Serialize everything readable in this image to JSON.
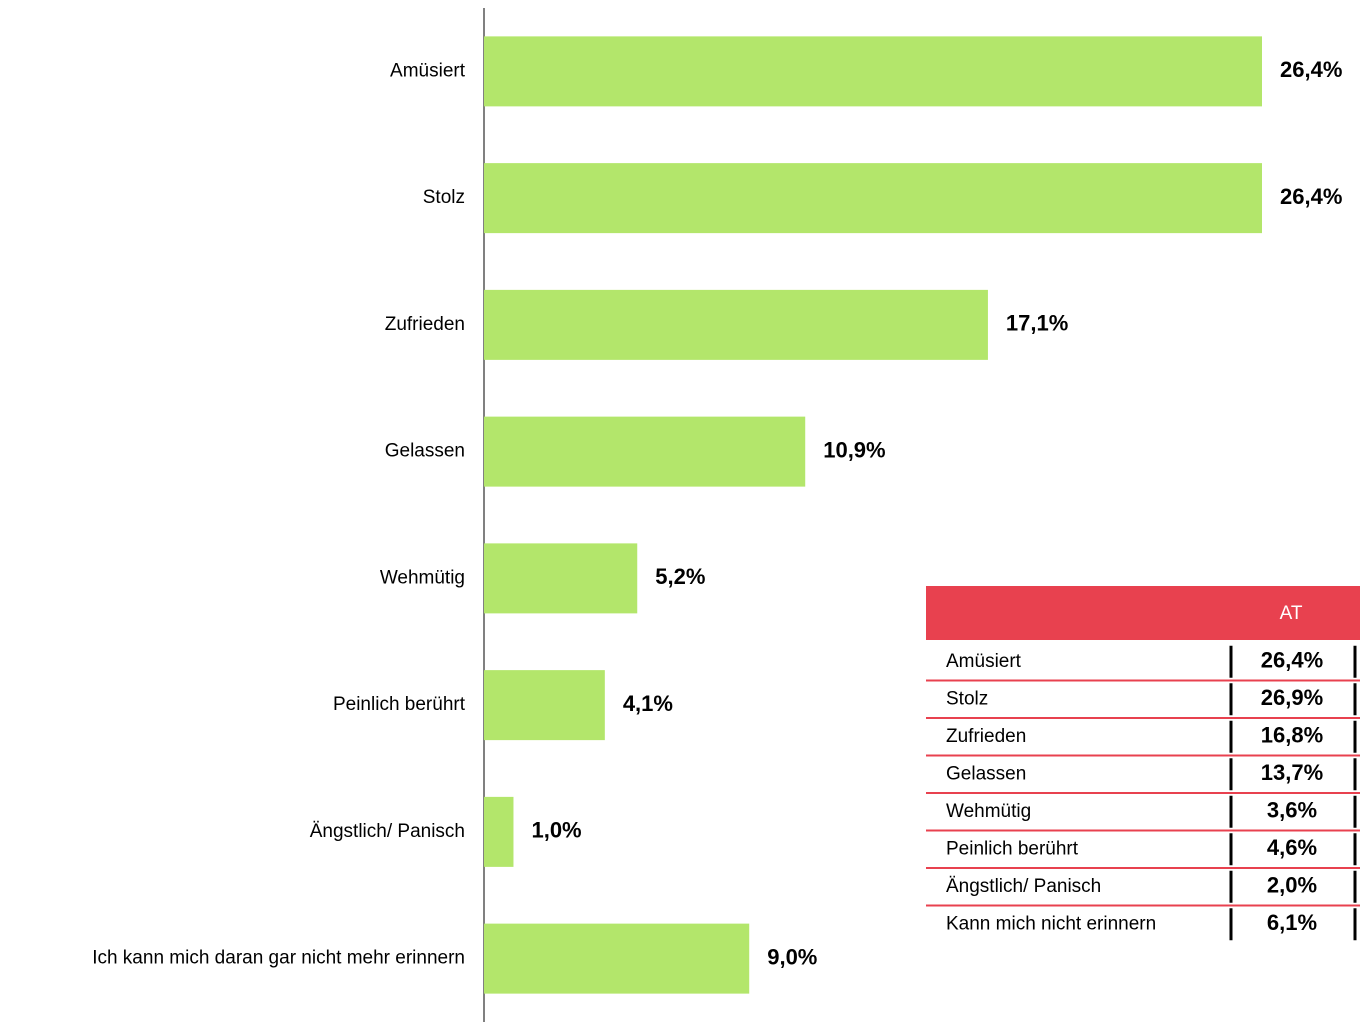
{
  "chart_data": {
    "type": "hbar",
    "categories": [
      "Amüsiert",
      "Stolz",
      "Zufrieden",
      "Gelassen",
      "Wehmütig",
      "Peinlich berührt",
      "Ängstlich/ Panisch",
      "Ich kann mich daran gar nicht mehr erinnern"
    ],
    "values": [
      26.4,
      26.4,
      17.1,
      10.9,
      5.2,
      4.1,
      1.0,
      9.0
    ],
    "value_labels": [
      "26,4%",
      "26,4%",
      "17,1%",
      "10,9%",
      "5,2%",
      "4,1%",
      "1,0%",
      "9,0%"
    ],
    "color": "#b3e66b"
  },
  "table": {
    "header": "AT",
    "rows": [
      [
        "Amüsiert",
        "26,4%"
      ],
      [
        "Stolz",
        "26,9%"
      ],
      [
        "Zufrieden",
        "16,8%"
      ],
      [
        "Gelassen",
        "13,7%"
      ],
      [
        "Wehmütig",
        "3,6%"
      ],
      [
        "Peinlich berührt",
        "4,6%"
      ],
      [
        "Ängstlich/ Panisch",
        "2,0%"
      ],
      [
        "Kann mich nicht erinnern",
        "6,1%"
      ]
    ]
  }
}
